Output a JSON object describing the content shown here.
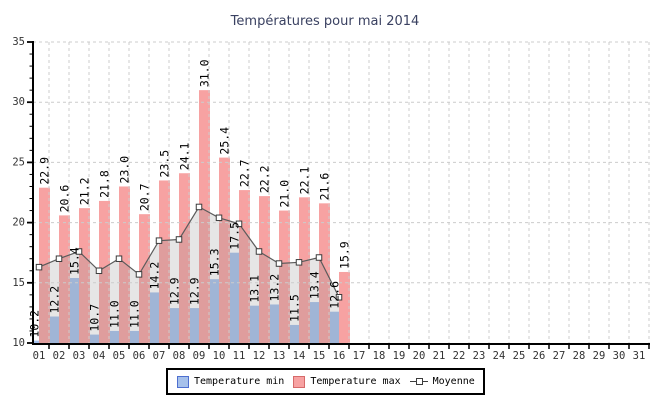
{
  "title": "Températures pour mai 2014",
  "chart_data": {
    "type": "bar",
    "title": "Températures pour mai 2014",
    "x_categories": [
      "01",
      "02",
      "03",
      "04",
      "05",
      "06",
      "07",
      "08",
      "09",
      "10",
      "11",
      "12",
      "13",
      "14",
      "15",
      "16",
      "17",
      "18",
      "19",
      "20",
      "21",
      "22",
      "23",
      "24",
      "25",
      "26",
      "27",
      "28",
      "29",
      "30",
      "31"
    ],
    "ylim": [
      10,
      35
    ],
    "y_ticks": [
      10,
      15,
      20,
      25,
      30,
      35
    ],
    "grid": true,
    "legend_position": "bottom",
    "series": [
      {
        "name": "Temperature min",
        "type": "bar",
        "color": "#a6c1eb",
        "values": [
          10.2,
          12.2,
          15.4,
          10.7,
          11.0,
          11.0,
          14.2,
          12.9,
          12.9,
          15.3,
          17.5,
          13.1,
          13.2,
          11.5,
          13.4,
          12.6
        ]
      },
      {
        "name": "Temperature max",
        "type": "bar",
        "color": "#f7a2a2",
        "values": [
          22.9,
          20.6,
          21.2,
          21.8,
          23.0,
          20.7,
          23.5,
          24.1,
          31.0,
          25.4,
          22.7,
          22.2,
          21.0,
          22.1,
          21.6,
          15.9
        ]
      },
      {
        "name": "Moyenne",
        "type": "line",
        "color": "#5c5c5c",
        "values": [
          16.3,
          17.0,
          17.6,
          16.0,
          17.0,
          15.7,
          18.5,
          18.6,
          21.3,
          20.4,
          19.9,
          17.6,
          16.6,
          16.7,
          17.1,
          13.8
        ]
      }
    ],
    "colors": {
      "grid": "#cccccc",
      "axis": "#000000",
      "tick_text": "#333333",
      "value_label": "#000000",
      "area_fill": "rgba(140,140,140,0.22)",
      "marker_fill": "#ffffff",
      "marker_stroke": "#3c3c3c",
      "title": "#3a4161"
    }
  }
}
